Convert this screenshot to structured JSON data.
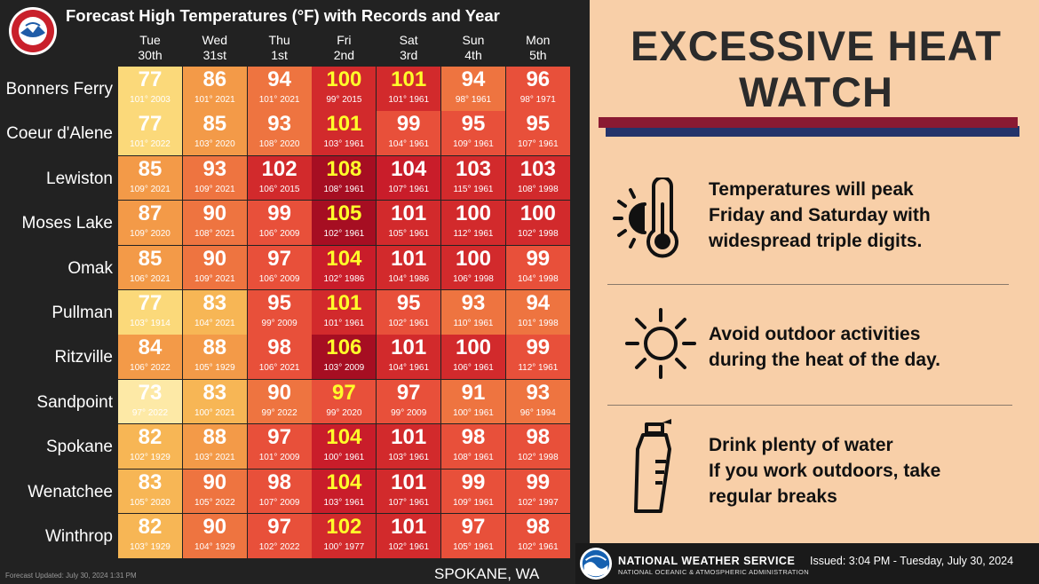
{
  "header": {
    "title": "Forecast High Temperatures (°F) with Records and Year",
    "location": "SPOKANE, WA",
    "updated": "Forecast Updated: July 30, 2024 1:31 PM"
  },
  "colors": {
    "t70s_low": "#fde9a6",
    "t70s": "#fbd97a",
    "t80s": "#f7b655",
    "t84_88": "#f39a48",
    "t90s": "#ee7440",
    "t95": "#e8503a",
    "t100s": "#d22a2c",
    "t104": "#c91d2a",
    "t105plus": "#a60e22",
    "highlight_text": "#ffff2a"
  },
  "chart_data": {
    "type": "table",
    "title": "Forecast High Temperatures (°F) with Records and Year",
    "columns": [
      {
        "day": "Tue",
        "date": "30th"
      },
      {
        "day": "Wed",
        "date": "31st"
      },
      {
        "day": "Thu",
        "date": "1st"
      },
      {
        "day": "Fri",
        "date": "2nd"
      },
      {
        "day": "Sat",
        "date": "3rd"
      },
      {
        "day": "Sun",
        "date": "4th"
      },
      {
        "day": "Mon",
        "date": "5th"
      }
    ],
    "rows": [
      {
        "city": "Bonners Ferry",
        "forecast": [
          77,
          86,
          94,
          100,
          101,
          94,
          96
        ],
        "records": [
          "101° 2003",
          "101° 2021",
          "101° 2021",
          "99° 2015",
          "101° 1961",
          "98° 1961",
          "98° 1971"
        ]
      },
      {
        "city": "Coeur d'Alene",
        "forecast": [
          77,
          85,
          93,
          101,
          99,
          95,
          95
        ],
        "records": [
          "101° 2022",
          "103° 2020",
          "108° 2020",
          "103° 1961",
          "104° 1961",
          "109° 1961",
          "107° 1961"
        ]
      },
      {
        "city": "Lewiston",
        "forecast": [
          85,
          93,
          102,
          108,
          104,
          103,
          103
        ],
        "records": [
          "109° 2021",
          "109° 2021",
          "106° 2015",
          "108° 1961",
          "107° 1961",
          "115° 1961",
          "108° 1998"
        ]
      },
      {
        "city": "Moses Lake",
        "forecast": [
          87,
          90,
          99,
          105,
          101,
          100,
          100
        ],
        "records": [
          "109° 2020",
          "108° 2021",
          "106° 2009",
          "102° 1961",
          "105° 1961",
          "112° 1961",
          "102° 1998"
        ]
      },
      {
        "city": "Omak",
        "forecast": [
          85,
          90,
          97,
          104,
          101,
          100,
          99
        ],
        "records": [
          "106° 2021",
          "109° 2021",
          "106° 2009",
          "102° 1986",
          "104° 1986",
          "106° 1998",
          "104° 1998"
        ]
      },
      {
        "city": "Pullman",
        "forecast": [
          77,
          83,
          95,
          101,
          95,
          93,
          94
        ],
        "records": [
          "103° 1914",
          "104° 2021",
          "99° 2009",
          "101° 1961",
          "102° 1961",
          "110° 1961",
          "101° 1998"
        ]
      },
      {
        "city": "Ritzville",
        "forecast": [
          84,
          88,
          98,
          106,
          101,
          100,
          99
        ],
        "records": [
          "106° 2022",
          "105° 1929",
          "106° 2021",
          "103° 2009",
          "104° 1961",
          "106° 1961",
          "112° 1961"
        ]
      },
      {
        "city": "Sandpoint",
        "forecast": [
          73,
          83,
          90,
          97,
          97,
          91,
          93
        ],
        "records": [
          "97° 2022",
          "100° 2021",
          "99° 2022",
          "99° 2020",
          "99° 2009",
          "100° 1961",
          "96° 1994"
        ]
      },
      {
        "city": "Spokane",
        "forecast": [
          82,
          88,
          97,
          104,
          101,
          98,
          98
        ],
        "records": [
          "102° 1929",
          "103° 2021",
          "101° 2009",
          "100° 1961",
          "103° 1961",
          "108° 1961",
          "102° 1998"
        ]
      },
      {
        "city": "Wenatchee",
        "forecast": [
          83,
          90,
          98,
          104,
          101,
          99,
          99
        ],
        "records": [
          "105° 2020",
          "105° 2022",
          "107° 2009",
          "103° 1961",
          "107° 1961",
          "109° 1961",
          "102° 1997"
        ]
      },
      {
        "city": "Winthrop",
        "forecast": [
          82,
          90,
          97,
          102,
          101,
          97,
          98
        ],
        "records": [
          "103° 1929",
          "104° 1929",
          "102° 2022",
          "100° 1977",
          "102° 1961",
          "105° 1961",
          "102° 1961"
        ]
      }
    ],
    "highlighted_text_color_on": "Fri 2nd and Bonners Ferry Sat 3rd"
  },
  "watch": {
    "title_line1": "EXCESSIVE HEAT",
    "title_line2": "WATCH",
    "messages": [
      {
        "icon": "sun-thermometer-icon",
        "lines": [
          "Temperatures will peak",
          "Friday and Saturday with",
          "widespread triple digits."
        ]
      },
      {
        "icon": "sun-icon",
        "lines": [
          "Avoid outdoor activities",
          "during the heat of the day."
        ]
      },
      {
        "icon": "water-bottle-icon",
        "lines": [
          "Drink plenty of water",
          "If you work outdoors, take",
          "regular breaks"
        ]
      }
    ]
  },
  "footer": {
    "agency": "NATIONAL WEATHER SERVICE",
    "parent": "NATIONAL OCEANIC & ATMOSPHERIC ADMINISTRATION",
    "issued": "Issued: 3:04 PM - Tuesday, July 30, 2024"
  }
}
